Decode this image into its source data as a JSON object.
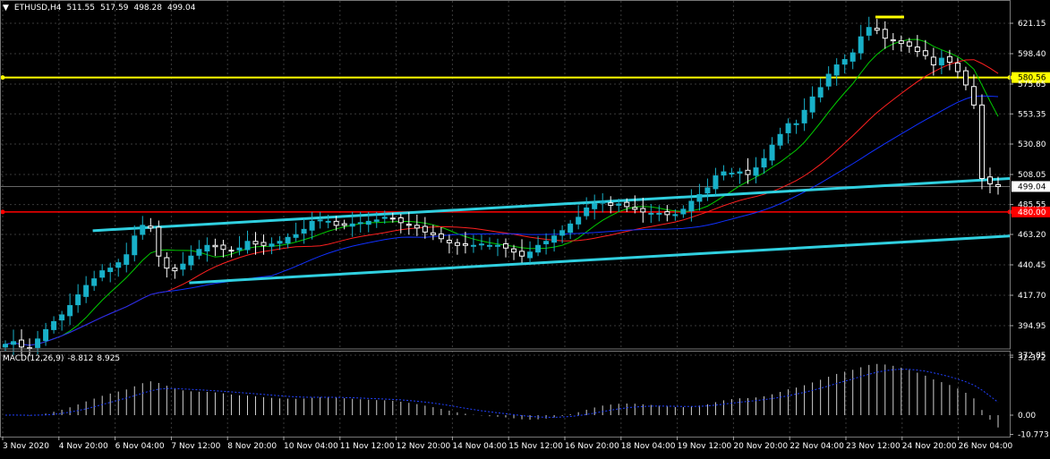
{
  "symbol": "ETHUSD,H4",
  "ohlc": {
    "open": "511.55",
    "high": "517.59",
    "low": "498.28",
    "close": "499.04"
  },
  "macd": {
    "label": "MACD(12,26,9)",
    "main": "-8.812",
    "signal": "8.925"
  },
  "colors": {
    "background": "#000000",
    "grid": "#3a3a3a",
    "bull_candle": "#18b0c8",
    "bear_candle": "#ffffff",
    "trendline": "#30d0e0",
    "resistance": "#ffff00",
    "support": "#ff0000",
    "ma_fast": "#00cc00",
    "ma_mid": "#ff2020",
    "ma_slow": "#1030ff"
  },
  "chart_data": [
    {
      "type": "candlestick",
      "title": "ETHUSD,H4",
      "y_ticks": [
        "621.15",
        "598.40",
        "575.65",
        "553.35",
        "530.80",
        "508.05",
        "485.55",
        "463.20",
        "440.45",
        "417.70",
        "394.95",
        "372.85"
      ],
      "ylim": [
        372.85,
        628
      ],
      "x_ticks": [
        "3 Nov 2020",
        "4 Nov 20:00",
        "6 Nov 04:00",
        "7 Nov 12:00",
        "8 Nov 20:00",
        "10 Nov 04:00",
        "11 Nov 12:00",
        "12 Nov 20:00",
        "14 Nov 04:00",
        "15 Nov 12:00",
        "16 Nov 20:00",
        "18 Nov 04:00",
        "19 Nov 12:00",
        "20 Nov 20:00",
        "22 Nov 04:00",
        "23 Nov 12:00",
        "24 Nov 20:00",
        "26 Nov 04:00"
      ],
      "horizontal_levels": [
        {
          "label": "580.56",
          "value": 580.56,
          "color": "#ffff00"
        },
        {
          "label": "480.00",
          "value": 480.0,
          "color": "#ff0000"
        }
      ],
      "current_price": "499.04",
      "close": [
        381,
        383,
        379,
        378,
        385,
        392,
        398,
        403,
        410,
        418,
        425,
        430,
        436,
        438,
        442,
        448,
        462,
        470,
        468,
        447,
        438,
        436,
        441,
        447,
        452,
        455,
        454,
        452,
        451,
        453,
        458,
        456,
        455,
        456,
        458,
        461,
        463,
        467,
        473,
        474,
        473,
        470,
        470,
        471,
        472,
        473,
        474,
        476,
        475,
        472,
        470,
        468,
        465,
        463,
        460,
        457,
        455,
        455,
        455,
        456,
        455,
        455,
        453,
        450,
        447,
        450,
        455,
        458,
        462,
        466,
        471,
        476,
        483,
        486,
        488,
        485,
        486,
        484,
        482,
        480,
        479,
        479,
        478,
        478,
        482,
        488,
        493,
        498,
        507,
        510,
        509,
        510,
        508,
        513,
        520,
        530,
        538,
        546,
        546,
        556,
        566,
        573,
        583,
        590,
        594,
        599,
        611,
        618,
        616,
        610,
        608,
        606,
        604,
        600,
        597,
        590,
        595,
        592,
        585,
        575,
        560,
        505,
        501,
        499
      ],
      "series": [
        {
          "name": "MA fast",
          "color": "#00cc00"
        },
        {
          "name": "MA mid",
          "color": "#ff2020"
        },
        {
          "name": "MA slow",
          "color": "#1030ff"
        }
      ],
      "trendlines": [
        {
          "from": [
            "6 Nov 04:00",
            466
          ],
          "to": [
            "26 Nov 04:00",
            505
          ]
        },
        {
          "from": [
            "7 Nov 12:00",
            427
          ],
          "to": [
            "26 Nov 04:00",
            462
          ]
        }
      ]
    },
    {
      "type": "histogram",
      "title": "MACD(12,26,9)",
      "y_ticks": [
        "32.372",
        "0.00",
        "-10.773"
      ],
      "ylim": [
        -12,
        36
      ]
    }
  ]
}
